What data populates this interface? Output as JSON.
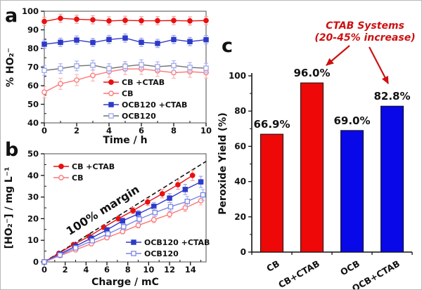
{
  "figure": {
    "description": "Three-panel electrochemical peroxide figure",
    "background": "#ffffff"
  },
  "chart_data": [
    {
      "id": "a",
      "type": "line",
      "panel_label": "a",
      "xlabel": "Time / h",
      "ylabel": "% HO₂⁻",
      "xlim": [
        0,
        10
      ],
      "ylim": [
        40,
        100
      ],
      "xticks": [
        0,
        2,
        4,
        6,
        8,
        10
      ],
      "yticks": [
        40,
        50,
        60,
        70,
        80,
        90,
        100
      ],
      "x_minor_step": 1,
      "y_minor_step": 5,
      "grid": false,
      "legend_position": "bottom-right",
      "series": [
        {
          "name": "CB +CTAB",
          "marker": "circle",
          "filled": true,
          "color": "#e81010",
          "err_color": "#ff9a9a",
          "err": 2.2,
          "x": [
            0,
            1,
            2,
            3,
            4,
            5,
            6,
            7,
            8,
            9,
            10
          ],
          "values": [
            94.5,
            96.2,
            95.7,
            95.4,
            94.8,
            95.1,
            94.9,
            94.9,
            95.0,
            94.8,
            95.0
          ]
        },
        {
          "name": "CB",
          "marker": "circle",
          "filled": false,
          "color": "#ff7474",
          "err_color": "#ffb4b4",
          "err": 3.0,
          "x": [
            0,
            1,
            2,
            3,
            4,
            5,
            6,
            7,
            8,
            9,
            10
          ],
          "values": [
            56.5,
            61.0,
            63.0,
            65.5,
            67.5,
            69.0,
            69.0,
            68.0,
            67.0,
            67.5,
            67.0
          ]
        },
        {
          "name": "OCB120 +CTAB",
          "marker": "square",
          "filled": true,
          "color": "#2e3ac8",
          "err_color": "#99a2ec",
          "err": 2.2,
          "x": [
            0,
            1,
            2,
            3,
            4,
            5,
            6,
            7,
            8,
            9,
            10
          ],
          "values": [
            82.3,
            83.3,
            84.5,
            83.2,
            84.8,
            85.6,
            83.3,
            82.7,
            84.8,
            83.7,
            84.7
          ]
        },
        {
          "name": "OCB120",
          "marker": "square",
          "filled": false,
          "color": "#9fa8ec",
          "line_color": "#707070",
          "err_color": "#aab4ef",
          "err": 2.6,
          "x": [
            0,
            1,
            2,
            3,
            4,
            5,
            6,
            7,
            8,
            9,
            10
          ],
          "values": [
            68.2,
            69.2,
            70.6,
            71.0,
            69.2,
            70.4,
            71.3,
            70.2,
            70.8,
            69.8,
            69.4
          ]
        }
      ]
    },
    {
      "id": "b",
      "type": "line",
      "panel_label": "b",
      "xlabel": "Charge / mC",
      "ylabel": "[HO₂⁻] / mg L⁻¹",
      "xlim": [
        0,
        15.5
      ],
      "ylim": [
        0,
        50
      ],
      "xticks": [
        0,
        2,
        4,
        6,
        8,
        10,
        12,
        14
      ],
      "yticks": [
        0,
        10,
        20,
        30,
        40,
        50
      ],
      "x_minor_step": 1,
      "y_minor_step": 5,
      "grid": false,
      "legend_position": "split top-left and bottom-right",
      "reference_line": {
        "x": [
          0,
          15.5
        ],
        "y": [
          0,
          46.5
        ],
        "style": "dashed",
        "color": "#111111",
        "label": "100% margin"
      },
      "series": [
        {
          "name": "CB +CTAB",
          "marker": "circle",
          "filled": true,
          "color": "#e81010",
          "err_color": "#ff9a9a",
          "err_pct": 6,
          "err_min": 0.5,
          "x": [
            0,
            1.4,
            2.8,
            4.3,
            5.7,
            7.1,
            8.5,
            9.9,
            11.3,
            12.8,
            14.2
          ],
          "values": [
            0,
            4.0,
            8.0,
            11.8,
            16.0,
            20.0,
            23.7,
            27.7,
            31.5,
            35.7,
            40.0
          ]
        },
        {
          "name": "CB",
          "marker": "circle",
          "filled": false,
          "color": "#ff7474",
          "err_color": "#ffb4b4",
          "err_pct": 7,
          "err_min": 0.5,
          "x": [
            0,
            1.5,
            3.0,
            4.5,
            6.0,
            7.5,
            9.0,
            10.5,
            12.0,
            13.5,
            15.0
          ],
          "values": [
            0,
            2.9,
            5.6,
            8.4,
            11.2,
            14.0,
            16.9,
            19.5,
            22.0,
            25.0,
            28.3
          ]
        },
        {
          "name": "OCB120 +CTAB",
          "marker": "square",
          "filled": true,
          "color": "#2e3ac8",
          "err_color": "#99a2ec",
          "err_pct": 7,
          "err_min": 0.5,
          "x": [
            0,
            1.5,
            3.0,
            4.5,
            6.0,
            7.5,
            9.0,
            10.5,
            12.0,
            13.5,
            15.0
          ],
          "values": [
            0,
            3.6,
            7.3,
            11.0,
            14.8,
            19.0,
            22.2,
            25.7,
            29.5,
            33.5,
            37.0
          ]
        },
        {
          "name": "OCB120",
          "marker": "square",
          "filled": false,
          "color": "#7b85e6",
          "err_color": "#aab4ef",
          "err_pct": 8,
          "err_min": 0.5,
          "x": [
            0,
            1.5,
            3.0,
            4.6,
            6.1,
            7.6,
            9.1,
            10.6,
            12.1,
            13.7,
            15.2
          ],
          "values": [
            0,
            3.2,
            6.5,
            9.8,
            13.0,
            16.3,
            19.8,
            22.8,
            25.5,
            28.0,
            31.0
          ]
        }
      ]
    },
    {
      "id": "c",
      "type": "bar",
      "panel_label": "c",
      "ylabel": "Peroxide Yield (%)",
      "ylim": [
        0,
        100
      ],
      "yticks": [
        0,
        20,
        40,
        60,
        80,
        100
      ],
      "y_minor_step": 10,
      "categories": [
        "CB",
        "CB+CTAB",
        "OCB",
        "OCB+CTAB"
      ],
      "values": [
        66.9,
        96.0,
        69.0,
        82.8
      ],
      "value_labels": [
        "66.9%",
        "96.0%",
        "69.0%",
        "82.8%"
      ],
      "bar_colors": [
        "#ee0808",
        "#ee0808",
        "#0808e8",
        "#0808e8"
      ],
      "annotation": {
        "line1": "CTAB Systems",
        "line2": "(20-45% increase)",
        "color": "#cc1111"
      }
    }
  ]
}
